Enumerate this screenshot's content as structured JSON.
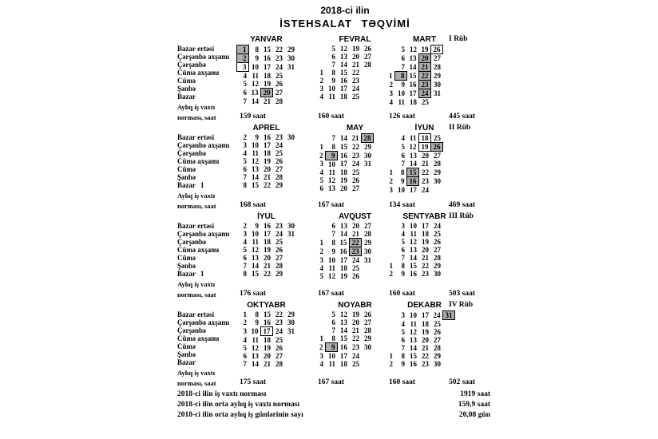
{
  "title": {
    "line1": "2018-ci ilin",
    "line2": "İSTEHSALAT TƏQVİMİ"
  },
  "day_labels": [
    "Bazar ertəsi",
    "Çərşənbə axşamı",
    "Çərşənbə",
    "Cümə axşamı",
    "Cümə",
    "Şənbə",
    "Bazar"
  ],
  "norm_label": {
    "line1": "Aylıq iş vaxtı",
    "line2": "norması, saat"
  },
  "colors": {
    "holiday_bg": "#adadad",
    "box_border": "#000000",
    "text": "#000000",
    "page_bg": "#ffffff"
  },
  "quarters": [
    {
      "label": "I Rüb",
      "total": "445 saat",
      "months": [
        {
          "name": "YANVAR",
          "norm": "159 saat",
          "holidays": [
            1,
            2,
            20
          ],
          "moved": [
            3
          ],
          "grid": [
            [
              "",
              "1",
              "8",
              "15",
              "22",
              "29"
            ],
            [
              "",
              "2",
              "9",
              "16",
              "23",
              "30"
            ],
            [
              "",
              "3",
              "10",
              "17",
              "24",
              "31"
            ],
            [
              "",
              "4",
              "11",
              "18",
              "25",
              ""
            ],
            [
              "",
              "5",
              "12",
              "19",
              "26",
              ""
            ],
            [
              "",
              "6",
              "13",
              "20",
              "27",
              ""
            ],
            [
              "",
              "7",
              "14",
              "21",
              "28",
              ""
            ]
          ]
        },
        {
          "name": "FEVRAL",
          "norm": "160 saat",
          "holidays": [],
          "moved": [],
          "grid": [
            [
              "",
              "5",
              "12",
              "19",
              "26",
              ""
            ],
            [
              "",
              "6",
              "13",
              "20",
              "27",
              ""
            ],
            [
              "",
              "7",
              "14",
              "21",
              "28",
              ""
            ],
            [
              "1",
              "8",
              "15",
              "22",
              "",
              ""
            ],
            [
              "2",
              "9",
              "16",
              "23",
              "",
              ""
            ],
            [
              "3",
              "10",
              "17",
              "24",
              "",
              ""
            ],
            [
              "4",
              "11",
              "18",
              "25",
              "",
              ""
            ]
          ]
        },
        {
          "name": "MART",
          "norm": "126 saat",
          "holidays": [
            8,
            20,
            21,
            22,
            23,
            24
          ],
          "moved": [
            26
          ],
          "grid": [
            [
              "",
              "5",
              "12",
              "19",
              "26",
              ""
            ],
            [
              "",
              "6",
              "13",
              "20",
              "27",
              ""
            ],
            [
              "",
              "7",
              "14",
              "21",
              "28",
              ""
            ],
            [
              "1",
              "8",
              "15",
              "22",
              "29",
              ""
            ],
            [
              "2",
              "9",
              "16",
              "23",
              "30",
              ""
            ],
            [
              "3",
              "10",
              "17",
              "24",
              "31",
              ""
            ],
            [
              "4",
              "11",
              "18",
              "25",
              "",
              ""
            ]
          ]
        }
      ]
    },
    {
      "label": "II Rüb",
      "total": "469 saat",
      "months": [
        {
          "name": "APREL",
          "norm": "168 saat",
          "holidays": [],
          "moved": [],
          "grid": [
            [
              "",
              "2",
              "9",
              "16",
              "23",
              "30"
            ],
            [
              "",
              "3",
              "10",
              "17",
              "24",
              ""
            ],
            [
              "",
              "4",
              "11",
              "18",
              "25",
              ""
            ],
            [
              "",
              "5",
              "12",
              "19",
              "26",
              ""
            ],
            [
              "",
              "6",
              "13",
              "20",
              "27",
              ""
            ],
            [
              "",
              "7",
              "14",
              "21",
              "28",
              ""
            ],
            [
              "1",
              "8",
              "15",
              "22",
              "29",
              ""
            ]
          ]
        },
        {
          "name": "MAY",
          "norm": "167 saat",
          "holidays": [
            9,
            28
          ],
          "moved": [],
          "grid": [
            [
              "",
              "7",
              "14",
              "21",
              "28",
              ""
            ],
            [
              "1",
              "8",
              "15",
              "22",
              "29",
              ""
            ],
            [
              "2",
              "9",
              "16",
              "23",
              "30",
              ""
            ],
            [
              "3",
              "10",
              "17",
              "24",
              "31",
              ""
            ],
            [
              "4",
              "11",
              "18",
              "25",
              "",
              ""
            ],
            [
              "5",
              "12",
              "19",
              "26",
              "",
              ""
            ],
            [
              "6",
              "13",
              "20",
              "27",
              "",
              ""
            ]
          ]
        },
        {
          "name": "İYUN",
          "norm": "134 saat",
          "holidays": [
            15,
            16,
            26
          ],
          "moved": [
            18,
            19
          ],
          "grid": [
            [
              "",
              "4",
              "11",
              "18",
              "25",
              ""
            ],
            [
              "",
              "5",
              "12",
              "19",
              "26",
              ""
            ],
            [
              "",
              "6",
              "13",
              "20",
              "27",
              ""
            ],
            [
              "",
              "7",
              "14",
              "21",
              "28",
              ""
            ],
            [
              "1",
              "8",
              "15",
              "22",
              "29",
              ""
            ],
            [
              "2",
              "9",
              "16",
              "23",
              "30",
              ""
            ],
            [
              "3",
              "10",
              "17",
              "24",
              "",
              ""
            ]
          ]
        }
      ]
    },
    {
      "label": "III Rüb",
      "total": "503 saat",
      "months": [
        {
          "name": "İYUL",
          "norm": "176 saat",
          "holidays": [],
          "moved": [],
          "grid": [
            [
              "",
              "2",
              "9",
              "16",
              "23",
              "30"
            ],
            [
              "",
              "3",
              "10",
              "17",
              "24",
              "31"
            ],
            [
              "",
              "4",
              "11",
              "18",
              "25",
              ""
            ],
            [
              "",
              "5",
              "12",
              "19",
              "26",
              ""
            ],
            [
              "",
              "6",
              "13",
              "20",
              "27",
              ""
            ],
            [
              "",
              "7",
              "14",
              "21",
              "28",
              ""
            ],
            [
              "1",
              "8",
              "15",
              "22",
              "29",
              ""
            ]
          ]
        },
        {
          "name": "AVQUST",
          "norm": "167 saat",
          "holidays": [
            22,
            23
          ],
          "moved": [],
          "grid": [
            [
              "",
              "6",
              "13",
              "20",
              "27",
              ""
            ],
            [
              "",
              "7",
              "14",
              "21",
              "28",
              ""
            ],
            [
              "1",
              "8",
              "15",
              "22",
              "29",
              ""
            ],
            [
              "2",
              "9",
              "16",
              "23",
              "30",
              ""
            ],
            [
              "3",
              "10",
              "17",
              "24",
              "31",
              ""
            ],
            [
              "4",
              "11",
              "18",
              "25",
              "",
              ""
            ],
            [
              "5",
              "12",
              "19",
              "26",
              "",
              ""
            ]
          ]
        },
        {
          "name": "SENTYABR",
          "norm": "160 saat",
          "holidays": [],
          "moved": [],
          "grid": [
            [
              "",
              "3",
              "10",
              "17",
              "24",
              ""
            ],
            [
              "",
              "4",
              "11",
              "18",
              "25",
              ""
            ],
            [
              "",
              "5",
              "12",
              "19",
              "26",
              ""
            ],
            [
              "",
              "6",
              "13",
              "20",
              "27",
              ""
            ],
            [
              "",
              "7",
              "14",
              "21",
              "28",
              ""
            ],
            [
              "1",
              "8",
              "15",
              "22",
              "29",
              ""
            ],
            [
              "2",
              "9",
              "16",
              "23",
              "30",
              ""
            ]
          ]
        }
      ]
    },
    {
      "label": "IV Rüb",
      "total": "502 saat",
      "months": [
        {
          "name": "OKTYABR",
          "norm": "175 saat",
          "holidays": [],
          "moved": [
            17
          ],
          "grid": [
            [
              "",
              "1",
              "8",
              "15",
              "22",
              "29"
            ],
            [
              "",
              "2",
              "9",
              "16",
              "23",
              "30"
            ],
            [
              "",
              "3",
              "10",
              "17",
              "24",
              "31"
            ],
            [
              "",
              "4",
              "11",
              "18",
              "25",
              ""
            ],
            [
              "",
              "5",
              "12",
              "19",
              "26",
              ""
            ],
            [
              "",
              "6",
              "13",
              "20",
              "27",
              ""
            ],
            [
              "",
              "7",
              "14",
              "21",
              "28",
              ""
            ]
          ]
        },
        {
          "name": "NOYABR",
          "norm": "167 saat",
          "holidays": [
            9
          ],
          "moved": [],
          "grid": [
            [
              "",
              "5",
              "12",
              "19",
              "26",
              ""
            ],
            [
              "",
              "6",
              "13",
              "20",
              "27",
              ""
            ],
            [
              "",
              "7",
              "14",
              "21",
              "28",
              ""
            ],
            [
              "1",
              "8",
              "15",
              "22",
              "29",
              ""
            ],
            [
              "2",
              "9",
              "16",
              "23",
              "30",
              ""
            ],
            [
              "3",
              "10",
              "17",
              "24",
              "",
              ""
            ],
            [
              "4",
              "11",
              "18",
              "25",
              "",
              ""
            ]
          ]
        },
        {
          "name": "DEKABR",
          "norm": "160 saat",
          "holidays": [
            31
          ],
          "moved": [],
          "grid": [
            [
              "",
              "3",
              "10",
              "17",
              "24",
              "31"
            ],
            [
              "",
              "4",
              "11",
              "18",
              "25",
              ""
            ],
            [
              "",
              "5",
              "12",
              "19",
              "26",
              ""
            ],
            [
              "",
              "6",
              "13",
              "20",
              "27",
              ""
            ],
            [
              "",
              "7",
              "14",
              "21",
              "28",
              ""
            ],
            [
              "1",
              "8",
              "15",
              "22",
              "29",
              ""
            ],
            [
              "2",
              "9",
              "16",
              "23",
              "30",
              ""
            ]
          ]
        }
      ]
    }
  ],
  "summary": [
    {
      "label": "2018-ci ilin iş vaxtı norması",
      "value": "1919 saat"
    },
    {
      "label": "2018-ci ilin orta aylıq iş vaxtı norması",
      "value": "159,9 saat"
    },
    {
      "label": "2018-ci ilin orta aylıq iş günlərinin sayı",
      "value": "20,08 gün"
    }
  ]
}
